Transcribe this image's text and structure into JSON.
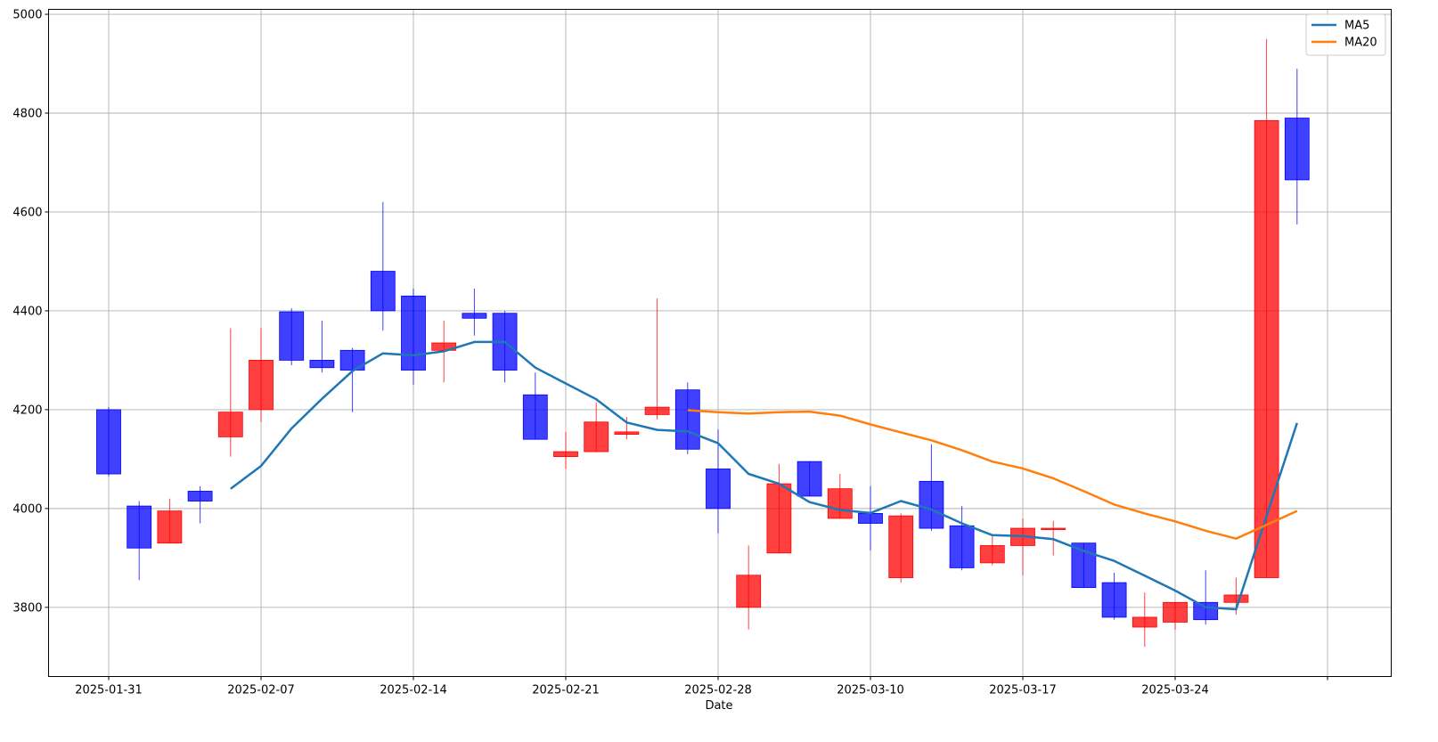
{
  "chart_data": {
    "type": "candlestick",
    "xlabel": "Date",
    "ylabel": "",
    "ylim": [
      3660,
      5010
    ],
    "grid": true,
    "legend_placement": "top-right",
    "x_ticks": [
      {
        "i": 0,
        "label": "2025-01-31"
      },
      {
        "i": 5,
        "label": "2025-02-07"
      },
      {
        "i": 10,
        "label": "2025-02-14"
      },
      {
        "i": 15,
        "label": "2025-02-21"
      },
      {
        "i": 20,
        "label": "2025-02-28"
      },
      {
        "i": 25,
        "label": "2025-03-10"
      },
      {
        "i": 30,
        "label": "2025-03-17"
      },
      {
        "i": 35,
        "label": "2025-03-24"
      },
      {
        "i": 40,
        "label": ""
      }
    ],
    "y_ticks": [
      3800,
      4000,
      4200,
      4400,
      4600,
      4800,
      5000
    ],
    "up_color": "#ff0000",
    "down_color": "#0000ff",
    "candles": [
      {
        "o": 4200,
        "h": 4205,
        "l": 4065,
        "c": 4070
      },
      {
        "o": 4005,
        "h": 4015,
        "l": 3855,
        "c": 3920
      },
      {
        "o": 3930,
        "h": 4020,
        "l": 3930,
        "c": 3995
      },
      {
        "o": 4035,
        "h": 4045,
        "l": 3970,
        "c": 4015
      },
      {
        "o": 4145,
        "h": 4365,
        "l": 4105,
        "c": 4195
      },
      {
        "o": 4200,
        "h": 4365,
        "l": 4175,
        "c": 4300
      },
      {
        "o": 4398,
        "h": 4405,
        "l": 4290,
        "c": 4300
      },
      {
        "o": 4300,
        "h": 4380,
        "l": 4275,
        "c": 4285
      },
      {
        "o": 4320,
        "h": 4325,
        "l": 4195,
        "c": 4280
      },
      {
        "o": 4480,
        "h": 4620,
        "l": 4360,
        "c": 4400
      },
      {
        "o": 4430,
        "h": 4445,
        "l": 4250,
        "c": 4280
      },
      {
        "o": 4320,
        "h": 4380,
        "l": 4255,
        "c": 4335
      },
      {
        "o": 4395,
        "h": 4445,
        "l": 4350,
        "c": 4385
      },
      {
        "o": 4395,
        "h": 4400,
        "l": 4255,
        "c": 4280
      },
      {
        "o": 4230,
        "h": 4275,
        "l": 4140,
        "c": 4140
      },
      {
        "o": 4105,
        "h": 4155,
        "l": 4080,
        "c": 4115
      },
      {
        "o": 4115,
        "h": 4215,
        "l": 4115,
        "c": 4175
      },
      {
        "o": 4150,
        "h": 4185,
        "l": 4140,
        "c": 4155
      },
      {
        "o": 4190,
        "h": 4425,
        "l": 4180,
        "c": 4205
      },
      {
        "o": 4240,
        "h": 4255,
        "l": 4110,
        "c": 4120
      },
      {
        "o": 4080,
        "h": 4160,
        "l": 3950,
        "c": 4000
      },
      {
        "o": 3800,
        "h": 3925,
        "l": 3755,
        "c": 3865
      },
      {
        "o": 3910,
        "h": 4090,
        "l": 3910,
        "c": 4050
      },
      {
        "o": 4095,
        "h": 4095,
        "l": 4025,
        "c": 4025
      },
      {
        "o": 3980,
        "h": 4070,
        "l": 3980,
        "c": 4040
      },
      {
        "o": 3990,
        "h": 4045,
        "l": 3915,
        "c": 3970
      },
      {
        "o": 3860,
        "h": 3990,
        "l": 3850,
        "c": 3985
      },
      {
        "o": 4055,
        "h": 4130,
        "l": 3955,
        "c": 3960
      },
      {
        "o": 3965,
        "h": 4005,
        "l": 3875,
        "c": 3880
      },
      {
        "o": 3890,
        "h": 3945,
        "l": 3885,
        "c": 3925
      },
      {
        "o": 3925,
        "h": 3980,
        "l": 3865,
        "c": 3960
      },
      {
        "o": 3960,
        "h": 3975,
        "l": 3905,
        "c": 3960
      },
      {
        "o": 3930,
        "h": 3930,
        "l": 3840,
        "c": 3840
      },
      {
        "o": 3850,
        "h": 3870,
        "l": 3775,
        "c": 3780
      },
      {
        "o": 3760,
        "h": 3830,
        "l": 3720,
        "c": 3780
      },
      {
        "o": 3770,
        "h": 3810,
        "l": 3755,
        "c": 3810
      },
      {
        "o": 3810,
        "h": 3875,
        "l": 3765,
        "c": 3775
      },
      {
        "o": 3810,
        "h": 3860,
        "l": 3785,
        "c": 3825
      },
      {
        "o": 3860,
        "h": 4950,
        "l": 3860,
        "c": 4785
      },
      {
        "o": 4790,
        "h": 4890,
        "l": 4575,
        "c": 4665
      }
    ],
    "series": [
      {
        "name": "MA5",
        "color": "#1f77b4",
        "start": 4,
        "values": [
          4040,
          4086,
          4162,
          4222,
          4278,
          4314,
          4310,
          4318,
          4337,
          4337,
          4285,
          4253,
          4221,
          4174,
          4159,
          4156,
          4132,
          4070,
          4050,
          4013,
          3997,
          3991,
          4015,
          3998,
          3970,
          3946,
          3944,
          3938,
          3914,
          3894,
          3864,
          3834,
          3800,
          3796,
          3985,
          4173
        ]
      },
      {
        "name": "MA20",
        "color": "#ff7f0e",
        "start": 19,
        "values": [
          4199,
          4195,
          4192,
          4195,
          4196,
          4188,
          4170,
          4154,
          4138,
          4118,
          4095,
          4081,
          4061,
          4035,
          4008,
          3990,
          3974,
          3955,
          3939,
          3967,
          3995
        ]
      }
    ]
  }
}
